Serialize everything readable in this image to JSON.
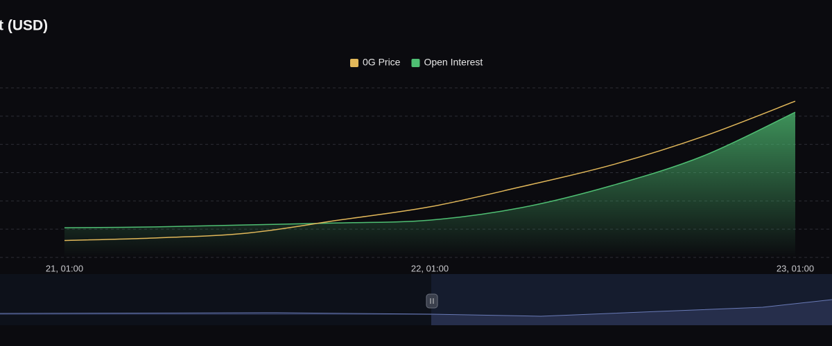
{
  "chart_data": {
    "type": "line",
    "title": "t (USD)",
    "x": [
      0,
      6,
      12,
      18,
      24,
      30,
      36,
      42,
      48
    ],
    "xlim": [
      0,
      48
    ],
    "xticks": [
      {
        "value": 0,
        "label": "21, 01:00"
      },
      {
        "value": 24,
        "label": "22, 01:00"
      },
      {
        "value": 48,
        "label": "23, 01:00"
      }
    ],
    "ylim": [
      0,
      6
    ],
    "yticks": [
      0,
      1,
      2,
      3,
      4,
      5,
      6
    ],
    "grid": true,
    "series": [
      {
        "name": "0G Price",
        "color": "#e2b85a",
        "values": [
          0.6,
          0.69,
          0.86,
          1.32,
          1.79,
          2.5,
          3.28,
          4.29,
          5.53
        ]
      },
      {
        "name": "Open Interest",
        "color": "#4fbf73",
        "area": true,
        "values": [
          1.05,
          1.08,
          1.15,
          1.22,
          1.32,
          1.76,
          2.55,
          3.6,
          5.14
        ]
      }
    ]
  }
}
